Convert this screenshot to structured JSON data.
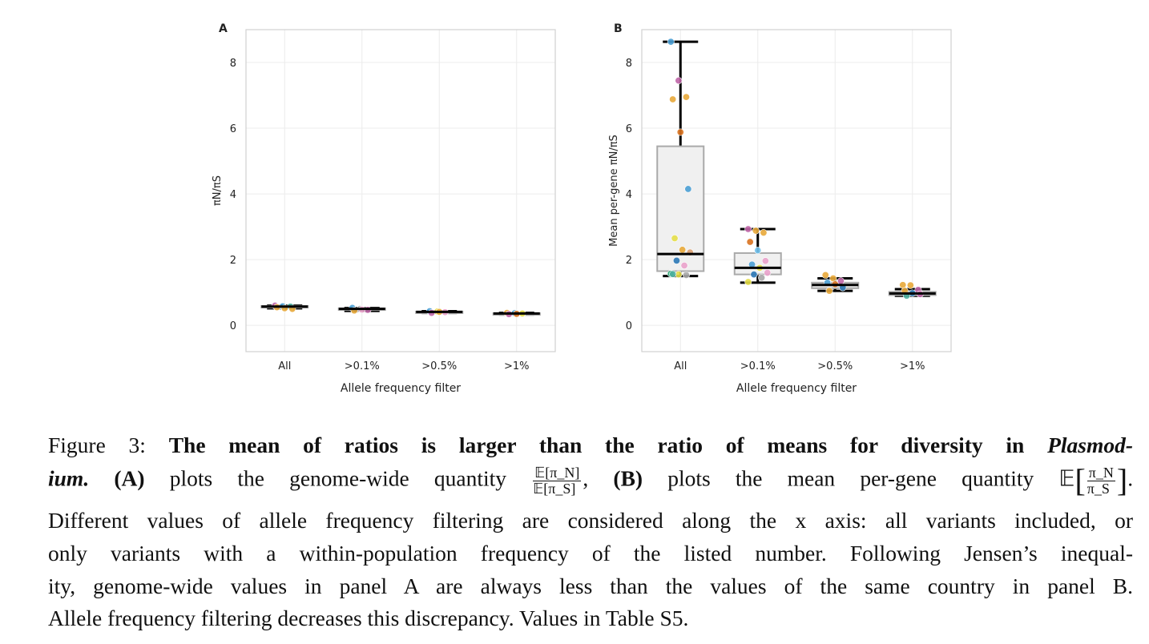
{
  "colors": {
    "blue": "#4a9fd4",
    "purple": "#c066a8",
    "orange": "#e8a83a",
    "darkorange": "#d9721f",
    "yellow": "#e4de48",
    "pink": "#eaa2cb",
    "darkblue": "#2b78b6",
    "green": "#22a36e",
    "grey": "#a7a7a7",
    "lightblue": "#73c3ee",
    "tan": "#d9a070",
    "teal": "#4fb0a0"
  },
  "chart_data": [
    {
      "type": "box",
      "panel_label": "A",
      "xlabel": "Allele frequency filter",
      "ylabel": "πN/πS",
      "ylim": [
        -0.8,
        9.0
      ],
      "yticks": [
        0,
        2,
        4,
        6,
        8
      ],
      "grid": true,
      "categories": [
        "All",
        ">0.1%",
        ">0.5%",
        ">1%"
      ],
      "boxes": [
        {
          "min": 0.52,
          "q1": 0.55,
          "median": 0.57,
          "q3": 0.59,
          "max": 0.6
        },
        {
          "min": 0.44,
          "q1": 0.47,
          "median": 0.5,
          "q3": 0.52,
          "max": 0.53
        },
        {
          "min": 0.38,
          "q1": 0.39,
          "median": 0.41,
          "q3": 0.42,
          "max": 0.43
        },
        {
          "min": 0.33,
          "q1": 0.34,
          "median": 0.36,
          "q3": 0.37,
          "max": 0.38
        }
      ],
      "points": [
        [
          [
            0.6,
            "purple"
          ],
          [
            0.58,
            "blue"
          ],
          [
            0.57,
            "teal"
          ],
          [
            0.55,
            "orange"
          ],
          [
            0.52,
            "orange"
          ],
          [
            0.5,
            "orange"
          ]
        ],
        [
          [
            0.53,
            "blue"
          ],
          [
            0.5,
            "grey"
          ],
          [
            0.47,
            "purple"
          ],
          [
            0.45,
            "orange"
          ],
          [
            0.48,
            "pink"
          ]
        ],
        [
          [
            0.43,
            "blue"
          ],
          [
            0.42,
            "yellow"
          ],
          [
            0.4,
            "pink"
          ],
          [
            0.38,
            "purple"
          ],
          [
            0.41,
            "orange"
          ]
        ],
        [
          [
            0.38,
            "orange"
          ],
          [
            0.37,
            "blue"
          ],
          [
            0.36,
            "yellow"
          ],
          [
            0.34,
            "purple"
          ],
          [
            0.35,
            "darkorange"
          ]
        ]
      ]
    },
    {
      "type": "box",
      "panel_label": "B",
      "xlabel": "Allele frequency filter",
      "ylabel": "Mean per-gene πN/πS",
      "ylim": [
        -0.8,
        9.0
      ],
      "yticks": [
        0,
        2,
        4,
        6,
        8
      ],
      "grid": true,
      "categories": [
        "All",
        ">0.1%",
        ">0.5%",
        ">1%"
      ],
      "boxes": [
        {
          "min": 1.5,
          "q1": 1.65,
          "median": 2.17,
          "q3": 5.45,
          "max": 8.63
        },
        {
          "min": 1.3,
          "q1": 1.55,
          "median": 1.75,
          "q3": 2.2,
          "max": 2.93
        },
        {
          "min": 1.05,
          "q1": 1.13,
          "median": 1.23,
          "q3": 1.3,
          "max": 1.43
        },
        {
          "min": 0.9,
          "q1": 0.92,
          "median": 0.97,
          "q3": 1.02,
          "max": 1.1
        }
      ],
      "points": [
        [
          [
            8.63,
            "blue"
          ],
          [
            7.45,
            "purple"
          ],
          [
            6.95,
            "orange"
          ],
          [
            6.88,
            "orange"
          ],
          [
            5.88,
            "darkorange"
          ],
          [
            4.15,
            "blue"
          ],
          [
            2.65,
            "yellow"
          ],
          [
            2.3,
            "orange"
          ],
          [
            2.22,
            "tan"
          ],
          [
            1.97,
            "darkblue"
          ],
          [
            1.82,
            "pink"
          ],
          [
            1.57,
            "green"
          ],
          [
            1.55,
            "yellow"
          ],
          [
            1.53,
            "grey"
          ],
          [
            1.56,
            "teal"
          ]
        ],
        [
          [
            2.93,
            "purple"
          ],
          [
            2.88,
            "orange"
          ],
          [
            2.82,
            "orange"
          ],
          [
            2.54,
            "darkorange"
          ],
          [
            2.28,
            "lightblue"
          ],
          [
            1.96,
            "pink"
          ],
          [
            1.85,
            "blue"
          ],
          [
            1.75,
            "yellow"
          ],
          [
            1.6,
            "pink"
          ],
          [
            1.55,
            "darkblue"
          ],
          [
            1.45,
            "grey"
          ],
          [
            1.32,
            "yellow"
          ]
        ],
        [
          [
            1.53,
            "orange"
          ],
          [
            1.43,
            "orange"
          ],
          [
            1.35,
            "purple"
          ],
          [
            1.3,
            "blue"
          ],
          [
            1.25,
            "darkorange"
          ],
          [
            1.15,
            "darkblue"
          ],
          [
            1.05,
            "orange"
          ]
        ],
        [
          [
            1.23,
            "orange"
          ],
          [
            1.22,
            "orange"
          ],
          [
            1.08,
            "purple"
          ],
          [
            1.05,
            "orange"
          ],
          [
            0.98,
            "darkblue"
          ],
          [
            0.95,
            "purple"
          ],
          [
            0.9,
            "teal"
          ]
        ]
      ]
    }
  ],
  "caption": {
    "fig": "Figure 3:",
    "title": "The mean of ratios is larger than the ratio of means for diversity in",
    "title_italic_a": "Plasmod-",
    "title_italic_b": "ium.",
    "a_label": "(A)",
    "a_text": "plots the genome-wide quantity",
    "a_num": "𝔼[π_N]",
    "a_den": "𝔼[π_S]",
    "comma": ",",
    "b_label": "(B)",
    "b_text": "plots the mean per-gene quantity 𝔼",
    "b_num": "π_N",
    "b_den": "π_S",
    "b_end": ".",
    "line3": "Different values of allele frequency filtering are considered along the x axis: all variants included, or",
    "line4": "only variants with a within-population frequency of the listed number. Following Jensen’s inequal-",
    "line5": "ity, genome-wide values in panel A are always less than the values of the same country in panel B.",
    "line6": "Allele frequency filtering decreases this discrepancy. Values in Table S5."
  }
}
